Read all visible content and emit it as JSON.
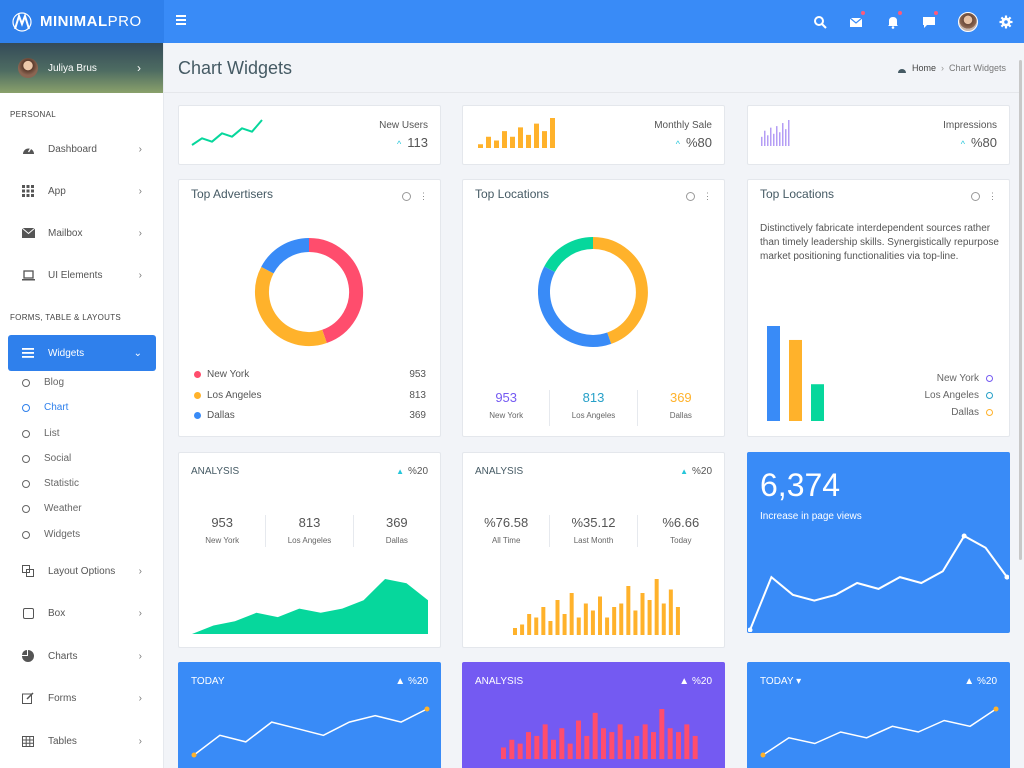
{
  "brand": {
    "name_bold": "MINIMAL",
    "name_light": "PRO"
  },
  "topbar": {
    "icons": [
      "menu-icon",
      "search-icon",
      "mail-icon",
      "bell-icon",
      "chat-icon",
      "avatar",
      "gear-icon"
    ]
  },
  "profile": {
    "name": "Juliya Brus"
  },
  "sidebar": {
    "section_personal": "PERSONAL",
    "section_forms": "FORMS, TABLE & LAYOUTS",
    "items": [
      {
        "label": "Dashboard",
        "icon": "dashboard-icon"
      },
      {
        "label": "App",
        "icon": "grid-icon"
      },
      {
        "label": "Mailbox",
        "icon": "envelope-icon"
      },
      {
        "label": "UI Elements",
        "icon": "laptop-icon"
      },
      {
        "label": "Widgets",
        "icon": "list-icon"
      },
      {
        "label": "Layout Options",
        "icon": "copy-icon"
      },
      {
        "label": "Box",
        "icon": "square-icon"
      },
      {
        "label": "Charts",
        "icon": "pie-icon"
      },
      {
        "label": "Forms",
        "icon": "edit-icon"
      },
      {
        "label": "Tables",
        "icon": "table-icon"
      }
    ],
    "sub_items": [
      "Blog",
      "Chart",
      "List",
      "Social",
      "Statistic",
      "Weather",
      "Widgets"
    ]
  },
  "page": {
    "title": "Chart Widgets",
    "crumb_home": "Home",
    "crumb_current": "Chart Widgets"
  },
  "stats": [
    {
      "label": "New Users",
      "value": "113"
    },
    {
      "label": "Monthly Sale",
      "value": "%80"
    },
    {
      "label": "Impressions",
      "value": "%80"
    }
  ],
  "top_advertisers": {
    "title": "Top Advertisers",
    "legend": [
      {
        "label": "New York",
        "value": "953"
      },
      {
        "label": "Los Angeles",
        "value": "813"
      },
      {
        "label": "Dallas",
        "value": "369"
      }
    ]
  },
  "top_locations": {
    "title": "Top Locations",
    "stats": [
      {
        "value": "953",
        "label": "New York"
      },
      {
        "value": "813",
        "label": "Los Angeles"
      },
      {
        "value": "369",
        "label": "Dallas"
      }
    ]
  },
  "top_locations_bar": {
    "title": "Top Locations",
    "description": "Distinctively fabricate interdependent sources rather than timely leadership skills. Synergistically repurpose market positioning functionalities via top-line.",
    "legend": [
      "New York",
      "Los Angeles",
      "Dallas"
    ]
  },
  "analysis1": {
    "title": "ANALYSIS",
    "pct": "%20",
    "stats": [
      {
        "value": "953",
        "label": "New York"
      },
      {
        "value": "813",
        "label": "Los Angeles"
      },
      {
        "value": "369",
        "label": "Dallas"
      }
    ]
  },
  "analysis2": {
    "title": "ANALYSIS",
    "pct": "%20",
    "stats": [
      {
        "value": "%76.58",
        "label": "All Time"
      },
      {
        "value": "%35.12",
        "label": "Last Month"
      },
      {
        "value": "%6.66",
        "label": "Today"
      }
    ]
  },
  "page_views": {
    "value": "6,374",
    "caption": "Increase in page views"
  },
  "bottom": [
    {
      "title": "TODAY",
      "pct": "%20"
    },
    {
      "title": "ANALYSIS",
      "pct": "%20"
    },
    {
      "title": "TODAY",
      "pct": "%20"
    }
  ],
  "colors": {
    "primary": "#398bf7",
    "red": "#ff4d6d",
    "orange": "#ffb22b",
    "blue": "#398bf7",
    "green": "#06d79c",
    "purple": "#745af2",
    "teal": "#26c6da"
  },
  "chart_data": [
    {
      "type": "line",
      "id": "new-users-spark",
      "values": [
        5,
        9,
        7,
        12,
        10,
        15,
        13,
        20
      ]
    },
    {
      "type": "bar",
      "id": "monthly-sale-spark",
      "values": [
        2,
        6,
        4,
        9,
        6,
        11,
        7,
        13,
        9,
        16
      ]
    },
    {
      "type": "bar",
      "id": "impressions-spark",
      "values": [
        6,
        10,
        7,
        12,
        8,
        13,
        9,
        15,
        11,
        17
      ]
    },
    {
      "type": "pie",
      "id": "top-advertisers-donut",
      "categories": [
        "New York",
        "Los Angeles",
        "Dallas"
      ],
      "values": [
        953,
        813,
        369
      ]
    },
    {
      "type": "pie",
      "id": "top-locations-donut",
      "categories": [
        "New York",
        "Los Angeles",
        "Dallas"
      ],
      "values": [
        953,
        813,
        369
      ]
    },
    {
      "type": "bar",
      "id": "top-locations-bars",
      "categories": [
        "New York",
        "Los Angeles",
        "Dallas"
      ],
      "values": [
        953,
        813,
        369
      ]
    },
    {
      "type": "area",
      "id": "analysis1-area",
      "values": [
        1,
        3,
        4,
        6,
        5,
        7,
        6,
        7,
        9,
        14,
        13,
        9
      ]
    },
    {
      "type": "bar",
      "id": "analysis2-bars",
      "values": [
        2,
        3,
        6,
        5,
        8,
        4,
        10,
        6,
        12,
        5,
        9,
        7,
        11,
        5,
        8,
        9,
        14,
        7,
        12,
        10,
        16,
        9,
        13,
        8
      ]
    },
    {
      "type": "line",
      "id": "page-views-line",
      "values": [
        1,
        10,
        7,
        6,
        7,
        9,
        8,
        10,
        9,
        11,
        17,
        15,
        10
      ]
    },
    {
      "type": "line",
      "id": "today1-line",
      "values": [
        2,
        5,
        4,
        7,
        6,
        5,
        7,
        8,
        7,
        9
      ]
    },
    {
      "type": "bar",
      "id": "analysis3-bars",
      "values": [
        3,
        5,
        4,
        7,
        6,
        9,
        5,
        8,
        4,
        10,
        6,
        12,
        8,
        7,
        9,
        5,
        6,
        9,
        7,
        13,
        8,
        7,
        9,
        6
      ]
    },
    {
      "type": "line",
      "id": "today2-line",
      "values": [
        2,
        5,
        4,
        6,
        5,
        7,
        6,
        8,
        7,
        10
      ]
    }
  ]
}
